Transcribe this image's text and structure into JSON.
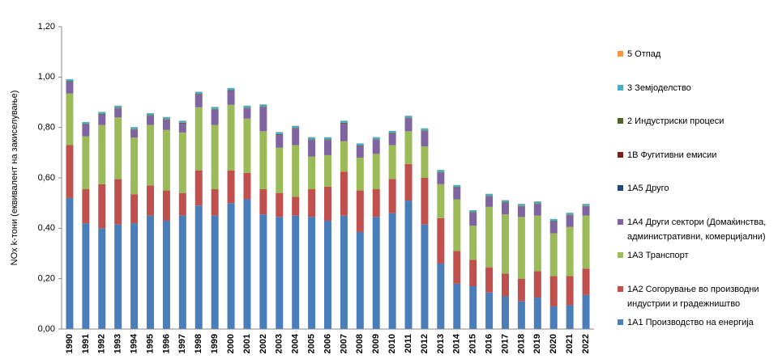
{
  "chart_data": {
    "type": "stacked_bar",
    "y_label": "NOx k-тони (еквивалент на закиселување)",
    "categories": [
      "1990",
      "1991",
      "1992",
      "1993",
      "1994",
      "1995",
      "1996",
      "1997",
      "1998",
      "1999",
      "2000",
      "2001",
      "2002",
      "2003",
      "2004",
      "2005",
      "2006",
      "2007",
      "2008",
      "2009",
      "2010",
      "2011",
      "2012",
      "2013",
      "2014",
      "2015",
      "2016",
      "2017",
      "2018",
      "2019",
      "2020",
      "2021",
      "2022"
    ],
    "ylim": [
      0,
      1.2
    ],
    "yticks": [
      {
        "value": 0,
        "label": "0,00"
      },
      {
        "value": 0.2,
        "label": "0,20"
      },
      {
        "value": 0.4,
        "label": "0,40"
      },
      {
        "value": 0.6,
        "label": "0,60"
      },
      {
        "value": 0.8,
        "label": "0,80"
      },
      {
        "value": 1.0,
        "label": "1,00"
      },
      {
        "value": 1.2,
        "label": "1,20"
      }
    ],
    "grid": false,
    "legend": "right",
    "series": [
      {
        "name": "1A1 Производство на енергија",
        "color": "#4a7ebb",
        "values": [
          0.52,
          0.42,
          0.4,
          0.415,
          0.42,
          0.45,
          0.43,
          0.45,
          0.49,
          0.45,
          0.5,
          0.515,
          0.455,
          0.445,
          0.45,
          0.445,
          0.43,
          0.45,
          0.385,
          0.445,
          0.46,
          0.51,
          0.415,
          0.26,
          0.18,
          0.17,
          0.145,
          0.13,
          0.11,
          0.125,
          0.09,
          0.095,
          0.135
        ]
      },
      {
        "name": "1A2 Согорување во производни индустрии и градежништво",
        "color": "#c0504d",
        "values": [
          0.21,
          0.135,
          0.175,
          0.18,
          0.115,
          0.12,
          0.12,
          0.09,
          0.14,
          0.105,
          0.13,
          0.105,
          0.1,
          0.095,
          0.075,
          0.11,
          0.135,
          0.175,
          0.165,
          0.11,
          0.135,
          0.145,
          0.185,
          0.18,
          0.13,
          0.105,
          0.1,
          0.09,
          0.09,
          0.105,
          0.12,
          0.115,
          0.105
        ]
      },
      {
        "name": "1A3 Транспорт",
        "color": "#9bbb59",
        "values": [
          0.205,
          0.21,
          0.235,
          0.245,
          0.225,
          0.24,
          0.24,
          0.24,
          0.25,
          0.255,
          0.26,
          0.215,
          0.23,
          0.18,
          0.205,
          0.13,
          0.125,
          0.12,
          0.13,
          0.14,
          0.135,
          0.13,
          0.125,
          0.135,
          0.205,
          0.135,
          0.24,
          0.235,
          0.245,
          0.22,
          0.17,
          0.195,
          0.21
        ]
      },
      {
        "name": "1A4 Други сектори (Домаќинства, административни, комерцијални)",
        "color": "#8064a2",
        "values": [
          0.045,
          0.045,
          0.04,
          0.035,
          0.03,
          0.035,
          0.04,
          0.035,
          0.05,
          0.06,
          0.055,
          0.04,
          0.095,
          0.05,
          0.065,
          0.065,
          0.06,
          0.07,
          0.045,
          0.055,
          0.045,
          0.05,
          0.06,
          0.045,
          0.045,
          0.05,
          0.04,
          0.045,
          0.04,
          0.045,
          0.045,
          0.045,
          0.035
        ]
      },
      {
        "name": "1A5 Друго",
        "color": "#1f497d",
        "values": [
          0.0005,
          0.0005,
          0.0005,
          0.0005,
          0.0005,
          0.0005,
          0.0005,
          0.0005,
          0.0005,
          0.0005,
          0.0005,
          0.0005,
          0.0005,
          0.0005,
          0.0005,
          0.0005,
          0.0005,
          0.0005,
          0.0005,
          0.0005,
          0.0005,
          0.0005,
          0.0005,
          0.0005,
          0.0005,
          0.0005,
          0.0005,
          0.0005,
          0.0005,
          0.0005,
          0.0005,
          0.0005,
          0.0005
        ]
      },
      {
        "name": "1B Фугитивни емисии",
        "color": "#7f1f1c",
        "values": [
          0.001,
          0.001,
          0.001,
          0.001,
          0.001,
          0.001,
          0.001,
          0.001,
          0.001,
          0.001,
          0.001,
          0.001,
          0.001,
          0.001,
          0.001,
          0.001,
          0.001,
          0.001,
          0.001,
          0.001,
          0.001,
          0.001,
          0.001,
          0.001,
          0.001,
          0.001,
          0.001,
          0.001,
          0.001,
          0.001,
          0.001,
          0.001,
          0.001
        ]
      },
      {
        "name": "2 Индустриски процеси",
        "color": "#4f6228",
        "values": [
          0.002,
          0.002,
          0.002,
          0.002,
          0.002,
          0.002,
          0.002,
          0.002,
          0.002,
          0.002,
          0.002,
          0.002,
          0.002,
          0.002,
          0.002,
          0.002,
          0.002,
          0.002,
          0.002,
          0.002,
          0.002,
          0.002,
          0.002,
          0.002,
          0.002,
          0.002,
          0.002,
          0.002,
          0.002,
          0.002,
          0.002,
          0.002,
          0.002
        ]
      },
      {
        "name": "3 Земјоделство",
        "color": "#4bacc6",
        "values": [
          0.008,
          0.008,
          0.008,
          0.008,
          0.008,
          0.008,
          0.008,
          0.008,
          0.008,
          0.008,
          0.008,
          0.008,
          0.008,
          0.008,
          0.008,
          0.008,
          0.008,
          0.008,
          0.008,
          0.008,
          0.008,
          0.008,
          0.008,
          0.008,
          0.008,
          0.008,
          0.008,
          0.008,
          0.008,
          0.008,
          0.008,
          0.008,
          0.008
        ]
      },
      {
        "name": "5 Отпад",
        "color": "#f79646",
        "values": [
          0.0005,
          0.0005,
          0.0005,
          0.0005,
          0.0005,
          0.0005,
          0.0005,
          0.0005,
          0.0005,
          0.0005,
          0.0005,
          0.0005,
          0.0005,
          0.0005,
          0.0005,
          0.0005,
          0.0005,
          0.0005,
          0.0005,
          0.0005,
          0.0005,
          0.0005,
          0.0005,
          0.0005,
          0.0005,
          0.0005,
          0.0005,
          0.0005,
          0.0005,
          0.0005,
          0.0005,
          0.0005,
          0.0005
        ]
      }
    ]
  }
}
